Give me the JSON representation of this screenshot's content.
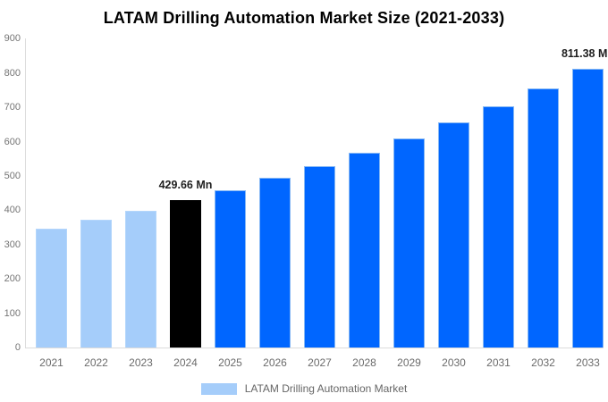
{
  "title": "LATAM Drilling Automation Market Size (2021-2033)",
  "chart_data": {
    "type": "bar",
    "title": "LATAM Drilling Automation Market Size (2021-2033)",
    "xlabel": "",
    "ylabel": "",
    "categories": [
      "2021",
      "2022",
      "2023",
      "2024",
      "2025",
      "2026",
      "2027",
      "2028",
      "2029",
      "2030",
      "2031",
      "2032",
      "2033"
    ],
    "values": [
      346,
      372,
      398,
      429.66,
      459,
      494,
      529,
      567,
      610,
      656,
      704,
      755,
      811.38
    ],
    "unit": "Mn",
    "bar_colors": [
      "#A5CDFA",
      "#A5CDFA",
      "#A5CDFA",
      "#000000",
      "#0066FF",
      "#0066FF",
      "#0066FF",
      "#0066FF",
      "#0066FF",
      "#0066FF",
      "#0066FF",
      "#0066FF",
      "#0066FF"
    ],
    "bar_border_colors": [
      "#B4D6FB",
      "#B4D6FB",
      "#B4D6FB",
      "#000000",
      "#86B8F4",
      "#86B8F4",
      "#86B8F4",
      "#86B8F4",
      "#86B8F4",
      "#86B8F4",
      "#86B8F4",
      "#86B8F4",
      "#86B8F4"
    ],
    "data_labels": [
      "",
      "",
      "",
      "429.66 Mn",
      "",
      "",
      "",
      "",
      "",
      "",
      "",
      "",
      "811.38 Mn"
    ],
    "ylim": [
      0,
      900
    ],
    "ytick_step": 100,
    "yticks": [
      0,
      100,
      200,
      300,
      400,
      500,
      600,
      700,
      800,
      900
    ],
    "grid": false,
    "legend": {
      "label": "LATAM Drilling Automation Market",
      "swatch_color": "#A5CDFA",
      "position": "bottom"
    }
  },
  "colors": {
    "background": "#FFFFFF",
    "title_text": "#000000",
    "axis_line": "#DCDCDC",
    "tick_text": "#757575",
    "data_label_text": "#1F1F1F",
    "legend_text": "#666666",
    "history_bar": "#A5CDFA",
    "highlight_bar": "#000000",
    "forecast_bar": "#0066FF"
  }
}
